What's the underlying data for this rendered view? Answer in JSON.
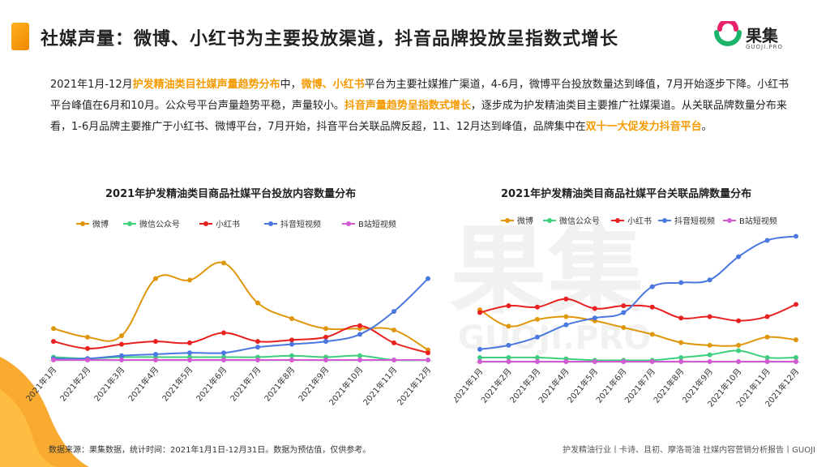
{
  "header": {
    "title": "社媒声量：微博、小红书为主要投放渠道，抖音品牌投放呈指数式增长",
    "logo_text": "果集",
    "logo_sub": "GUOJI.PRO",
    "accent": "#f59a00"
  },
  "intro": {
    "p1": "2021年1月-12月",
    "h1": "护发精油类目社媒声量趋势分布",
    "p2": "中，",
    "h2": "微博、小红书",
    "p3": "平台为主要社媒推广渠道，4-6月，微博平台投放数量达到峰值，7月开始逐步下降。小红书平台峰值在6月和10月。公众号平台声量趋势平稳，声量较小。",
    "h3": "抖音声量趋势呈指数式增长",
    "p4": "，逐步成为护发精油类目主要推广社媒渠道。从关联品牌数量分布来看，1-6月品牌主要推广于小红书、微博平台，7月开始，抖音平台关联品牌反超，11、12月达到峰值，品牌集中在",
    "h4": "双十一大促发力抖音平台",
    "p5": "。"
  },
  "watermark": {
    "text": "果集",
    "sub": "GUOJI.PRO"
  },
  "footer": {
    "source": "数据来源：果集数据，统计时间：2021年1月1日-12月31日。数据为预估值，仅供参考。",
    "report": "护发精油行业丨卡诗、且初、摩洛哥油 社媒内容营销分析报告丨GUOJI"
  },
  "chart_data": [
    {
      "type": "line",
      "title": "2021年护发精油类目商品社媒平台投放内容数量分布",
      "categories": [
        "2021年1月",
        "2021年2月",
        "2021年3月",
        "2021年4月",
        "2021年5月",
        "2021年6月",
        "2021年7月",
        "2021年8月",
        "2021年9月",
        "2021年10月",
        "2021年11月",
        "2021年12月"
      ],
      "ylim": [
        0,
        100
      ],
      "legend_position": "top",
      "series": [
        {
          "name": "微博",
          "color": "#e0960a",
          "values": [
            22,
            16,
            17,
            57,
            56,
            68,
            40,
            29,
            22,
            22,
            21,
            7
          ]
        },
        {
          "name": "微信公众号",
          "color": "#3ecf7e",
          "values": [
            2,
            1,
            2,
            2,
            2,
            2,
            2,
            3,
            2,
            3,
            0,
            0
          ]
        },
        {
          "name": "小红书",
          "color": "#e82020",
          "values": [
            13,
            8,
            11,
            13,
            12,
            19,
            13,
            14,
            16,
            24,
            12,
            5
          ]
        },
        {
          "name": "抖音短视频",
          "color": "#4a78e0",
          "values": [
            1,
            1,
            3,
            4,
            5,
            5,
            9,
            11,
            13,
            18,
            34,
            57
          ]
        },
        {
          "name": "B站短视频",
          "color": "#d25ad2",
          "values": [
            0,
            0,
            0,
            0,
            0,
            0,
            0,
            0,
            0,
            0,
            0,
            0
          ]
        }
      ]
    },
    {
      "type": "line",
      "title": "2021年护发精油类目商品社媒平台关联品牌数量分布",
      "categories": [
        "2021年1月",
        "2021年2月",
        "2021年3月",
        "2021年4月",
        "2021年5月",
        "2021年6月",
        "2021年7月",
        "2021年8月",
        "2021年9月",
        "2021年10月",
        "2021年11月",
        "2021年12月"
      ],
      "ylim": [
        0,
        100
      ],
      "legend_position": "top",
      "series": [
        {
          "name": "微博",
          "color": "#e0960a",
          "values": [
            38,
            26,
            31,
            33,
            30,
            25,
            20,
            14,
            12,
            12,
            18,
            16
          ]
        },
        {
          "name": "微信公众号",
          "color": "#3ecf7e",
          "values": [
            3,
            3,
            3,
            2,
            1,
            1,
            1,
            3,
            5,
            8,
            3,
            3
          ]
        },
        {
          "name": "小红书",
          "color": "#e82020",
          "values": [
            36,
            41,
            40,
            46,
            39,
            41,
            40,
            32,
            33,
            30,
            33,
            42
          ]
        },
        {
          "name": "抖音短视频",
          "color": "#4a78e0",
          "values": [
            9,
            12,
            18,
            27,
            32,
            36,
            55,
            58,
            60,
            77,
            89,
            92
          ]
        },
        {
          "name": "B站短视频",
          "color": "#d25ad2",
          "values": [
            0,
            0,
            0,
            0,
            0,
            0,
            0,
            0,
            0,
            0,
            0,
            0
          ]
        }
      ]
    }
  ]
}
